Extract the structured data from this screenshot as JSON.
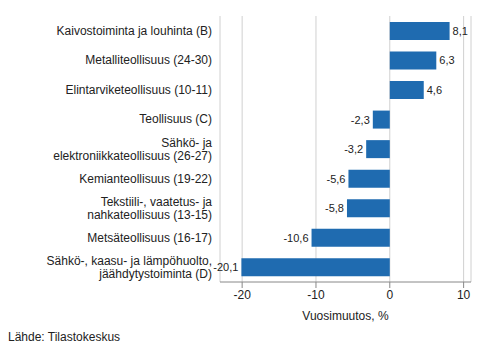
{
  "chart_data": {
    "type": "bar",
    "orientation": "horizontal",
    "x_label": "Vuosimuutos, %",
    "source": "Lähde: Tilastokeskus",
    "categories": [
      "Kaivostoiminta ja louhinta (B)",
      "Metalliteollisuus (24-30)",
      "Elintarviketeollisuus (10-11)",
      "Teollisuus (C)",
      "Sähkö- ja elektroniikkateollisuus (26-27)",
      "Kemianteollisuus (19-22)",
      "Tekstiili-, vaatetus- ja nahkateollisuus (13-15)",
      "Metsäteollisuus (16-17)",
      "Sähkö-, kaasu- ja lämpöhuolto, jäähdytystoiminta (D)"
    ],
    "values": [
      8.1,
      6.3,
      4.6,
      -2.3,
      -3.2,
      -5.6,
      -5.8,
      -10.6,
      -20.1
    ],
    "value_labels": [
      "8,1",
      "6,3",
      "4,6",
      "-2,3",
      "-3,2",
      "-5,6",
      "-5,8",
      "-10,6",
      "-20,1"
    ],
    "data_labels": true,
    "color": "#1f6bb0",
    "xlim": [
      -23,
      11
    ],
    "xticks": [
      -20,
      -10,
      0,
      10
    ],
    "grid": true
  }
}
